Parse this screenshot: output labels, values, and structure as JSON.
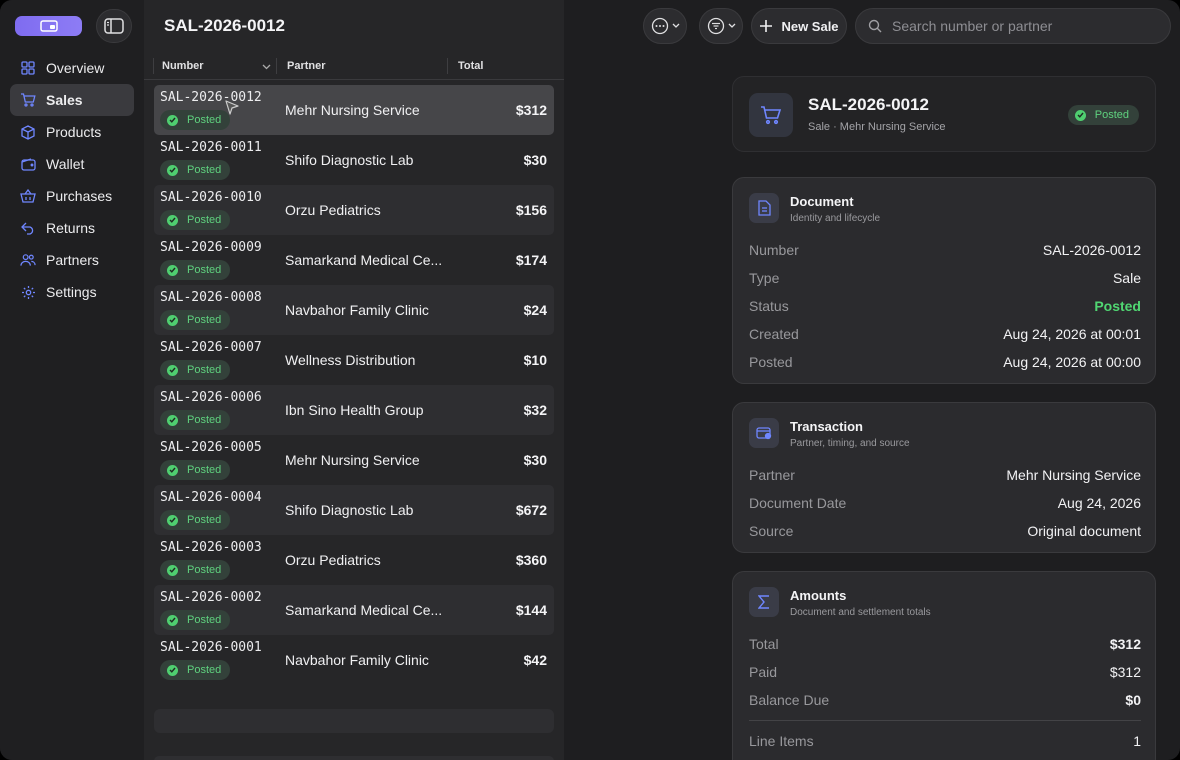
{
  "sidebar": {
    "items": [
      {
        "label": "Overview",
        "icon": "grid-icon"
      },
      {
        "label": "Sales",
        "icon": "cart-icon"
      },
      {
        "label": "Products",
        "icon": "box-icon"
      },
      {
        "label": "Wallet",
        "icon": "wallet-icon"
      },
      {
        "label": "Purchases",
        "icon": "basket-icon"
      },
      {
        "label": "Returns",
        "icon": "return-icon"
      },
      {
        "label": "Partners",
        "icon": "people-icon"
      },
      {
        "label": "Settings",
        "icon": "gear-icon"
      }
    ],
    "active": "Sales"
  },
  "list": {
    "title": "SAL-2026-0012",
    "columns": {
      "number": "Number",
      "partner": "Partner",
      "total": "Total"
    },
    "rows": [
      {
        "number": "SAL-2026-0012",
        "status": "Posted",
        "partner": "Mehr Nursing Service",
        "total": "$312"
      },
      {
        "number": "SAL-2026-0011",
        "status": "Posted",
        "partner": "Shifo Diagnostic Lab",
        "total": "$30"
      },
      {
        "number": "SAL-2026-0010",
        "status": "Posted",
        "partner": "Orzu Pediatrics",
        "total": "$156"
      },
      {
        "number": "SAL-2026-0009",
        "status": "Posted",
        "partner": "Samarkand Medical Ce...",
        "total": "$174"
      },
      {
        "number": "SAL-2026-0008",
        "status": "Posted",
        "partner": "Navbahor Family Clinic",
        "total": "$24"
      },
      {
        "number": "SAL-2026-0007",
        "status": "Posted",
        "partner": "Wellness Distribution",
        "total": "$10"
      },
      {
        "number": "SAL-2026-0006",
        "status": "Posted",
        "partner": "Ibn Sino Health Group",
        "total": "$32"
      },
      {
        "number": "SAL-2026-0005",
        "status": "Posted",
        "partner": "Mehr Nursing Service",
        "total": "$30"
      },
      {
        "number": "SAL-2026-0004",
        "status": "Posted",
        "partner": "Shifo Diagnostic Lab",
        "total": "$672"
      },
      {
        "number": "SAL-2026-0003",
        "status": "Posted",
        "partner": "Orzu Pediatrics",
        "total": "$360"
      },
      {
        "number": "SAL-2026-0002",
        "status": "Posted",
        "partner": "Samarkand Medical Ce...",
        "total": "$144"
      },
      {
        "number": "SAL-2026-0001",
        "status": "Posted",
        "partner": "Navbahor Family Clinic",
        "total": "$42"
      }
    ]
  },
  "toolbar": {
    "new_sale_label": "New Sale",
    "search_placeholder": "Search number or partner"
  },
  "detail": {
    "header": {
      "title": "SAL-2026-0012",
      "subtitle": "Sale · Mehr Nursing Service",
      "status": "Posted"
    },
    "document": {
      "title": "Document",
      "subtitle": "Identity and lifecycle",
      "fields": [
        {
          "label": "Number",
          "value": "SAL-2026-0012"
        },
        {
          "label": "Type",
          "value": "Sale"
        },
        {
          "label": "Status",
          "value": "Posted"
        },
        {
          "label": "Created",
          "value": "Aug 24, 2026 at 00:01"
        },
        {
          "label": "Posted",
          "value": "Aug 24, 2026 at 00:00"
        }
      ]
    },
    "transaction": {
      "title": "Transaction",
      "subtitle": "Partner, timing, and source",
      "fields": [
        {
          "label": "Partner",
          "value": "Mehr Nursing Service"
        },
        {
          "label": "Document Date",
          "value": "Aug 24, 2026"
        },
        {
          "label": "Source",
          "value": "Original document"
        }
      ]
    },
    "amounts": {
      "title": "Amounts",
      "subtitle": "Document and settlement totals",
      "fields": [
        {
          "label": "Total",
          "value": "$312"
        },
        {
          "label": "Paid",
          "value": "$312"
        },
        {
          "label": "Balance Due",
          "value": "$0"
        },
        {
          "label": "Line Items",
          "value": "1"
        }
      ]
    }
  },
  "colors": {
    "accent": "#7f6cf0",
    "posted_green": "#50d672",
    "icon_blue": "#6f86ff"
  }
}
